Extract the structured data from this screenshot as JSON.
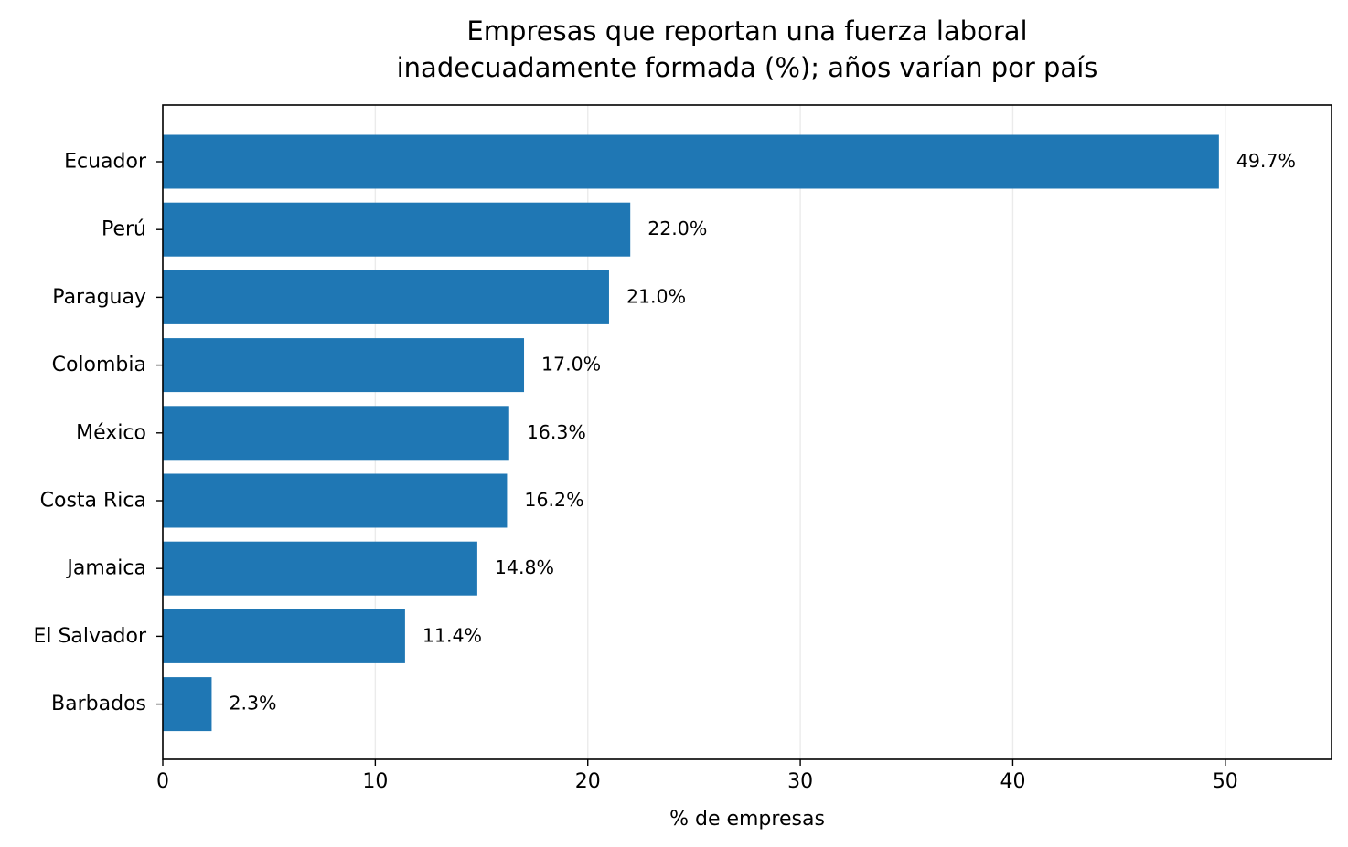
{
  "chart_data": {
    "type": "bar",
    "orientation": "horizontal",
    "title": "Empresas que reportan una fuerza laboral\ninadecuadamente formada (%); años varían por país",
    "xlabel": "% de empresas",
    "ylabel": "",
    "xlim": [
      0,
      55
    ],
    "x_ticks": [
      0,
      10,
      20,
      30,
      40,
      50
    ],
    "categories": [
      "Ecuador",
      "Perú",
      "Paraguay",
      "Colombia",
      "México",
      "Costa Rica",
      "Jamaica",
      "El Salvador",
      "Barbados"
    ],
    "values": [
      49.7,
      22.0,
      21.0,
      17.0,
      16.3,
      16.2,
      14.8,
      11.4,
      2.3
    ],
    "data_labels": [
      "49.7%",
      "22.0%",
      "21.0%",
      "17.0%",
      "16.3%",
      "16.2%",
      "14.8%",
      "11.4%",
      "2.3%"
    ],
    "bar_color": "#1f77b4",
    "grid": "vertical-x-major",
    "grid_color": "#ebebeb",
    "legend": "none"
  }
}
